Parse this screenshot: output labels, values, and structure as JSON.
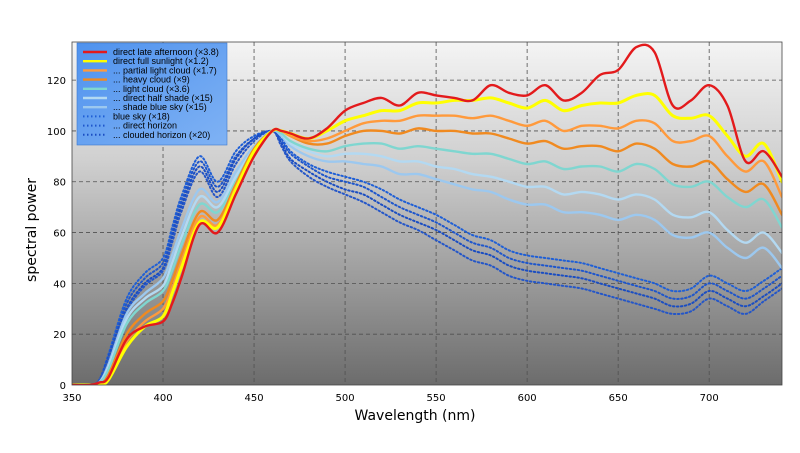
{
  "chart_data": {
    "type": "line",
    "xlabel": "Wavelength (nm)",
    "ylabel": "spectral power",
    "xlim": [
      350,
      740
    ],
    "ylim": [
      0,
      135
    ],
    "xticks": [
      "350",
      "400",
      "450",
      "500",
      "550",
      "600",
      "650",
      "700"
    ],
    "yticks": [
      "0",
      "20",
      "40",
      "60",
      "80",
      "100",
      "120"
    ],
    "grid": true,
    "legend_position": "top-left",
    "background": "vertical grey gradient (light top, dark bottom)",
    "x": [
      360,
      365,
      370,
      380,
      390,
      400,
      405,
      410,
      420,
      430,
      440,
      450,
      460,
      465,
      470,
      480,
      490,
      500,
      510,
      520,
      530,
      540,
      550,
      560,
      570,
      580,
      590,
      600,
      610,
      620,
      630,
      640,
      650,
      660,
      670,
      680,
      690,
      700,
      710,
      720,
      730,
      740
    ],
    "series": [
      {
        "name": "direct late afternoon (×3.8)",
        "color": "#e31a1c",
        "style": "solid",
        "values": [
          0,
          1,
          3,
          18,
          23,
          25,
          32,
          42,
          63,
          60,
          75,
          90,
          100,
          100,
          99,
          97,
          101,
          108,
          111,
          113,
          110,
          115,
          114,
          113,
          112,
          118,
          115,
          114,
          118,
          112,
          115,
          122,
          124,
          133,
          131,
          110,
          112,
          118,
          110,
          88,
          92,
          82
        ]
      },
      {
        "name": "direct full sunlight (×1.2)",
        "color": "#ffff00",
        "style": "solid",
        "values": [
          0,
          0,
          2,
          15,
          23,
          27,
          36,
          46,
          64,
          62,
          77,
          92,
          100,
          100,
          99,
          97,
          100,
          104,
          106,
          108,
          108,
          111,
          111,
          112,
          112,
          113,
          111,
          109,
          112,
          108,
          110,
          111,
          111,
          114,
          114,
          106,
          105,
          106,
          98,
          90,
          95,
          80
        ]
      },
      {
        "name": "... partial light cloud (×1.7)",
        "color": "#ff9a3c",
        "style": "solid",
        "values": [
          0,
          0,
          3,
          17,
          25,
          30,
          38,
          48,
          66,
          63,
          78,
          92,
          100,
          100,
          98,
          96,
          97,
          100,
          103,
          104,
          104,
          106,
          106,
          106,
          105,
          106,
          104,
          102,
          104,
          100,
          102,
          102,
          101,
          104,
          103,
          96,
          96,
          98,
          90,
          84,
          88,
          74
        ]
      },
      {
        "name": "... heavy cloud (×9)",
        "color": "#f08a20",
        "style": "solid",
        "values": [
          0,
          0,
          4,
          20,
          28,
          33,
          41,
          51,
          68,
          65,
          79,
          93,
          100,
          100,
          98,
          95,
          95,
          98,
          100,
          100,
          99,
          101,
          100,
          100,
          99,
          99,
          97,
          95,
          96,
          93,
          94,
          94,
          92,
          95,
          93,
          87,
          86,
          88,
          81,
          76,
          79,
          67
        ]
      },
      {
        "name": "... light cloud (×3.6)",
        "color": "#7fd6d0",
        "style": "solid",
        "values": [
          0,
          1,
          6,
          24,
          32,
          37,
          45,
          55,
          71,
          68,
          80,
          93,
          100,
          99,
          96,
          93,
          92,
          94,
          95,
          95,
          93,
          94,
          93,
          92,
          91,
          91,
          89,
          87,
          88,
          85,
          86,
          86,
          84,
          87,
          85,
          79,
          78,
          80,
          74,
          70,
          73,
          62
        ]
      },
      {
        "name": "... direct half shade (×15)",
        "color": "#b3d9f2",
        "style": "solid",
        "values": [
          0,
          1,
          7,
          26,
          34,
          39,
          48,
          58,
          74,
          70,
          82,
          93,
          100,
          99,
          95,
          92,
          90,
          91,
          91,
          90,
          88,
          88,
          86,
          85,
          83,
          82,
          80,
          78,
          78,
          75,
          76,
          75,
          73,
          75,
          73,
          67,
          66,
          68,
          61,
          56,
          60,
          52
        ]
      },
      {
        "name": "... shade blue sky (×15)",
        "color": "#9cc8ef",
        "style": "solid",
        "values": [
          0,
          1,
          8,
          28,
          36,
          42,
          51,
          61,
          77,
          72,
          84,
          94,
          100,
          98,
          94,
          90,
          88,
          88,
          87,
          86,
          83,
          83,
          81,
          79,
          77,
          76,
          73,
          71,
          71,
          68,
          68,
          67,
          65,
          67,
          65,
          59,
          58,
          60,
          54,
          50,
          54,
          46
        ]
      },
      {
        "name": "blue sky (×18)",
        "color": "#1f5fd6",
        "style": "dotted",
        "values": [
          0,
          2,
          12,
          34,
          44,
          50,
          62,
          74,
          90,
          80,
          92,
          98,
          100,
          97,
          92,
          87,
          84,
          82,
          80,
          77,
          73,
          70,
          67,
          63,
          59,
          57,
          53,
          51,
          50,
          49,
          48,
          46,
          44,
          42,
          40,
          37,
          38,
          43,
          40,
          37,
          41,
          46
        ]
      },
      {
        "name": "... direct horizon",
        "color": "#1e56cc",
        "style": "dotted",
        "values": [
          0,
          2,
          11,
          32,
          42,
          48,
          60,
          72,
          88,
          78,
          90,
          97,
          100,
          96,
          91,
          86,
          82,
          80,
          78,
          74,
          70,
          67,
          64,
          60,
          56,
          54,
          50,
          48,
          47,
          46,
          45,
          43,
          41,
          39,
          37,
          34,
          35,
          40,
          37,
          34,
          38,
          43
        ]
      },
      {
        "name": "... clouded horizon (×20)",
        "color": "#1a4dc2",
        "style": "dotted",
        "values": [
          0,
          2,
          11,
          30,
          40,
          46,
          58,
          70,
          86,
          76,
          89,
          97,
          100,
          95,
          89,
          84,
          80,
          77,
          75,
          71,
          67,
          64,
          61,
          57,
          53,
          51,
          47,
          45,
          44,
          43,
          42,
          40,
          38,
          36,
          34,
          31,
          32,
          37,
          34,
          31,
          35,
          40
        ]
      },
      {
        "name": "",
        "color": "#2456c8",
        "style": "dotted",
        "values": [
          0,
          2,
          10,
          29,
          39,
          45,
          56,
          68,
          84,
          74,
          87,
          96,
          100,
          94,
          88,
          82,
          78,
          75,
          72,
          68,
          64,
          61,
          57,
          53,
          49,
          47,
          43,
          41,
          40,
          39,
          38,
          36,
          34,
          32,
          30,
          28,
          29,
          34,
          31,
          28,
          33,
          38
        ]
      }
    ],
    "legend_entries": [
      {
        "label": "direct late afternoon (×3.8)",
        "color": "#e31a1c",
        "style": "solid"
      },
      {
        "label": "direct full sunlight (×1.2)",
        "color": "#ffff00",
        "style": "solid"
      },
      {
        "label": "... partial light cloud (×1.7)",
        "color": "#ff9a3c",
        "style": "solid"
      },
      {
        "label": "... heavy cloud (×9)",
        "color": "#f08a20",
        "style": "solid"
      },
      {
        "label": "... light cloud (×3.6)",
        "color": "#7fd6d0",
        "style": "solid"
      },
      {
        "label": "... direct half shade (×15)",
        "color": "#b3d9f2",
        "style": "solid"
      },
      {
        "label": "... shade blue sky (×15)",
        "color": "#9cc8ef",
        "style": "solid"
      },
      {
        "label": "blue sky (×18)",
        "color": "#1f5fd6",
        "style": "dotted"
      },
      {
        "label": "... direct horizon",
        "color": "#1e56cc",
        "style": "dotted"
      },
      {
        "label": "... clouded horizon (×20)",
        "color": "#1a4dc2",
        "style": "dotted"
      }
    ]
  },
  "colors": {
    "legend_bg": "#5b9bf0",
    "grid": "#4a4a4a",
    "plot_top": "#f2f2f2",
    "plot_bottom": "#6e6e6e"
  }
}
